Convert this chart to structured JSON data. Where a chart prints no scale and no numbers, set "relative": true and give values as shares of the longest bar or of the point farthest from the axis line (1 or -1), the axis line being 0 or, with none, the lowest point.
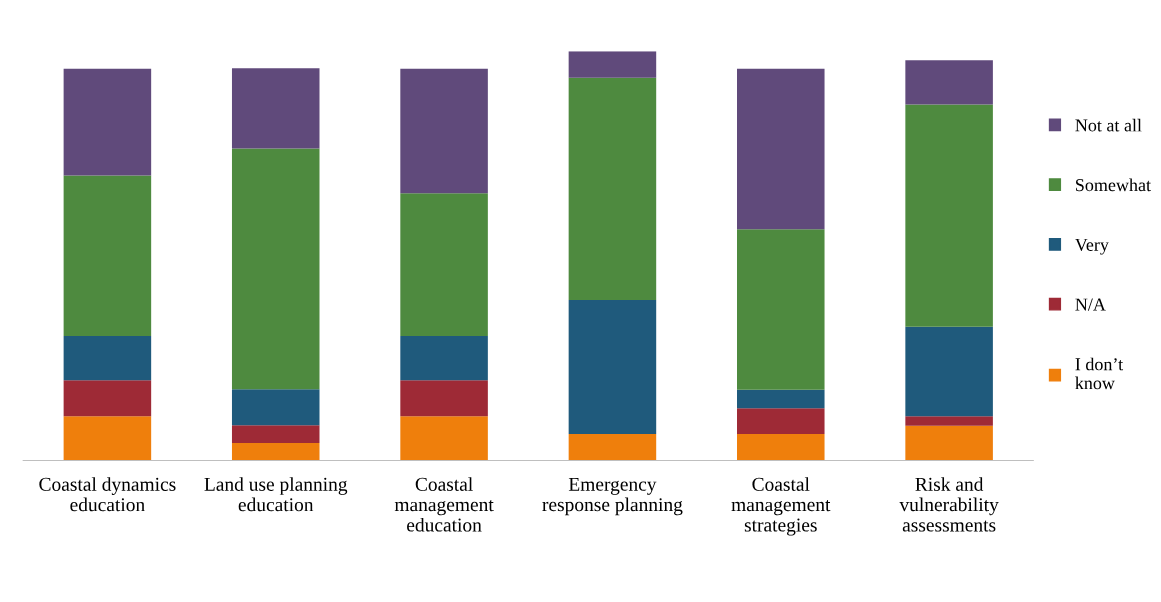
{
  "chart_data": {
    "type": "bar",
    "stacked": true,
    "relative": true,
    "grid": false,
    "legend": "right",
    "categories": [
      "Coastal dynamics\neducation",
      "Land use planning\neducation",
      "Coastal\nmanagement\neducation",
      "Emergency\nresponse planning",
      "Coastal\nmanagement\nstrategies",
      "Risk and\nvulnerability\nassessments"
    ],
    "series": [
      {
        "name": "I don’t\nknow",
        "color": "#ef7f0c",
        "values": [
          0.108,
          0.043,
          0.108,
          0.065,
          0.065,
          0.085
        ]
      },
      {
        "name": "N/A",
        "color": "#9e2a36",
        "values": [
          0.088,
          0.043,
          0.088,
          0,
          0.063,
          0.023
        ]
      },
      {
        "name": "Very",
        "color": "#1f5a7c",
        "values": [
          0.108,
          0.088,
          0.108,
          0.327,
          0.045,
          0.219
        ]
      },
      {
        "name": "Somewhat",
        "color": "#4e8a3f",
        "values": [
          0.392,
          0.588,
          0.349,
          0.543,
          0.392,
          0.543
        ]
      },
      {
        "name": "Not at all",
        "color": "#604a7b",
        "values": [
          0.261,
          0.196,
          0.304,
          0.065,
          0.392,
          0.108
        ]
      }
    ]
  }
}
